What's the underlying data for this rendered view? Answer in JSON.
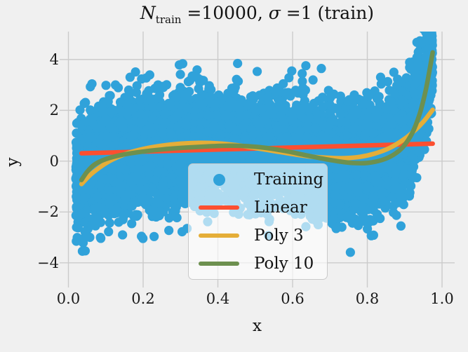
{
  "figure": {
    "background": "#f0f0f0",
    "title_parts": {
      "n_symbol": "N",
      "n_subscript": "train",
      "eq1": " =10000, ",
      "sigma": "σ",
      "eq2": " =1 (train)"
    }
  },
  "chart_data": {
    "type": "scatter",
    "title": "N_train =10000, σ =1 (train)",
    "xlabel": "x",
    "ylabel": "y",
    "xlim": [
      -0.0235,
      1.0338
    ],
    "ylim": [
      -4.97,
      5.1
    ],
    "grid": true,
    "grid_color": "#cbcbcb",
    "text_color": "#1a1a1a",
    "x_ticks": [
      {
        "value": 0.0,
        "label": "0.0"
      },
      {
        "value": 0.2,
        "label": "0.2"
      },
      {
        "value": 0.4,
        "label": "0.4"
      },
      {
        "value": 0.6,
        "label": "0.6"
      },
      {
        "value": 0.8,
        "label": "0.8"
      },
      {
        "value": 1.0,
        "label": "1.0"
      }
    ],
    "y_ticks": [
      {
        "value": -4,
        "label": "−4"
      },
      {
        "value": -2,
        "label": "−2"
      },
      {
        "value": 0,
        "label": "0"
      },
      {
        "value": 2,
        "label": "2"
      },
      {
        "value": 4,
        "label": "4"
      }
    ],
    "legend": {
      "position": "lower center",
      "items": [
        {
          "label": "Training",
          "marker": "dot",
          "color": "#30a2da"
        },
        {
          "label": "Linear",
          "marker": "line",
          "color": "#fc4f30"
        },
        {
          "label": "Poly 3",
          "marker": "line",
          "color": "#e5ae38"
        },
        {
          "label": "Poly 10",
          "marker": "line",
          "color": "#6d904f"
        }
      ]
    },
    "scatter": {
      "name": "Training",
      "color": "#30a2da",
      "n": 10000,
      "x_range": [
        0.02,
        0.975
      ],
      "sigma": 1,
      "seed": 20,
      "marker_radius": 6.6,
      "mean_curve": [
        [
          0.02,
          -0.8
        ],
        [
          0.05,
          -0.35
        ],
        [
          0.1,
          0.0
        ],
        [
          0.2,
          0.3
        ],
        [
          0.3,
          0.45
        ],
        [
          0.4,
          0.55
        ],
        [
          0.5,
          0.5
        ],
        [
          0.6,
          0.3
        ],
        [
          0.7,
          0.05
        ],
        [
          0.78,
          -0.05
        ],
        [
          0.85,
          0.15
        ],
        [
          0.9,
          0.75
        ],
        [
          0.93,
          1.8
        ],
        [
          0.95,
          2.6
        ],
        [
          0.975,
          4.2
        ]
      ]
    },
    "series": [
      {
        "name": "Linear",
        "color": "#fc4f30",
        "width": 6.5,
        "points": [
          [
            0.035,
            0.31
          ],
          [
            0.975,
            0.69
          ]
        ]
      },
      {
        "name": "Poly 3",
        "color": "#e5ae38",
        "width": 6.5,
        "points": [
          [
            0.035,
            -0.9
          ],
          [
            0.06,
            -0.52
          ],
          [
            0.09,
            -0.18
          ],
          [
            0.12,
            0.08
          ],
          [
            0.16,
            0.32
          ],
          [
            0.2,
            0.48
          ],
          [
            0.25,
            0.61
          ],
          [
            0.3,
            0.69
          ],
          [
            0.35,
            0.72
          ],
          [
            0.4,
            0.7
          ],
          [
            0.45,
            0.63
          ],
          [
            0.5,
            0.52
          ],
          [
            0.55,
            0.4
          ],
          [
            0.6,
            0.28
          ],
          [
            0.65,
            0.18
          ],
          [
            0.7,
            0.13
          ],
          [
            0.74,
            0.12
          ],
          [
            0.78,
            0.17
          ],
          [
            0.82,
            0.3
          ],
          [
            0.86,
            0.52
          ],
          [
            0.9,
            0.88
          ],
          [
            0.93,
            1.25
          ],
          [
            0.95,
            1.55
          ],
          [
            0.975,
            2.02
          ]
        ]
      },
      {
        "name": "Poly 10",
        "color": "#6d904f",
        "width": 6.5,
        "points": [
          [
            0.035,
            -0.74
          ],
          [
            0.05,
            -0.42
          ],
          [
            0.07,
            -0.13
          ],
          [
            0.1,
            0.08
          ],
          [
            0.14,
            0.24
          ],
          [
            0.19,
            0.36
          ],
          [
            0.25,
            0.46
          ],
          [
            0.31,
            0.53
          ],
          [
            0.37,
            0.58
          ],
          [
            0.43,
            0.61
          ],
          [
            0.48,
            0.59
          ],
          [
            0.53,
            0.52
          ],
          [
            0.58,
            0.4
          ],
          [
            0.63,
            0.25
          ],
          [
            0.68,
            0.1
          ],
          [
            0.72,
            0.0
          ],
          [
            0.76,
            -0.07
          ],
          [
            0.8,
            -0.07
          ],
          [
            0.84,
            0.05
          ],
          [
            0.87,
            0.25
          ],
          [
            0.895,
            0.55
          ],
          [
            0.92,
            1.1
          ],
          [
            0.94,
            1.85
          ],
          [
            0.955,
            2.7
          ],
          [
            0.965,
            3.45
          ],
          [
            0.975,
            4.28
          ]
        ]
      }
    ]
  }
}
